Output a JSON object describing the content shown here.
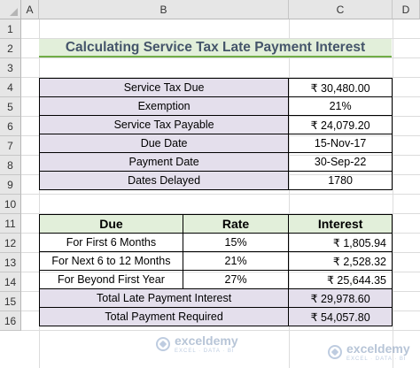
{
  "columns": [
    "A",
    "B",
    "C",
    "D"
  ],
  "rows": [
    "1",
    "2",
    "3",
    "4",
    "5",
    "6",
    "7",
    "8",
    "9",
    "10",
    "11",
    "12",
    "13",
    "14",
    "15",
    "16"
  ],
  "title": "Calculating Service Tax Late Payment Interest",
  "summary": [
    {
      "label": "Service Tax Due",
      "value": "₹ 30,480.00"
    },
    {
      "label": "Exemption",
      "value": "21%"
    },
    {
      "label": "Service Tax Payable",
      "value": "₹ 24,079.20"
    },
    {
      "label": "Due Date",
      "value": "15-Nov-17"
    },
    {
      "label": "Payment Date",
      "value": "30-Sep-22"
    },
    {
      "label": "Dates Delayed",
      "value": "1780"
    }
  ],
  "interest_table": {
    "headers": [
      "Due",
      "Rate",
      "Interest"
    ],
    "rows": [
      {
        "due": "For First 6 Months",
        "rate": "15%",
        "interest": "₹ 1,805.94"
      },
      {
        "due": "For Next 6 to 12 Months",
        "rate": "21%",
        "interest": "₹ 2,528.32"
      },
      {
        "due": "For Beyond First Year",
        "rate": "27%",
        "interest": "₹ 25,644.35"
      }
    ],
    "total_interest_label": "Total Late Payment Interest",
    "total_interest_value": "₹ 29,978.60",
    "total_payment_label": "Total Payment Required",
    "total_payment_value": "₹ 54,057.80"
  },
  "watermark": {
    "brand": "exceldemy",
    "tagline": "EXCEL · DATA · BI"
  },
  "colors": {
    "title_bg": "#e2efda",
    "title_border": "#70ad47",
    "title_text": "#44546a",
    "label_bg": "#e4dfec"
  }
}
